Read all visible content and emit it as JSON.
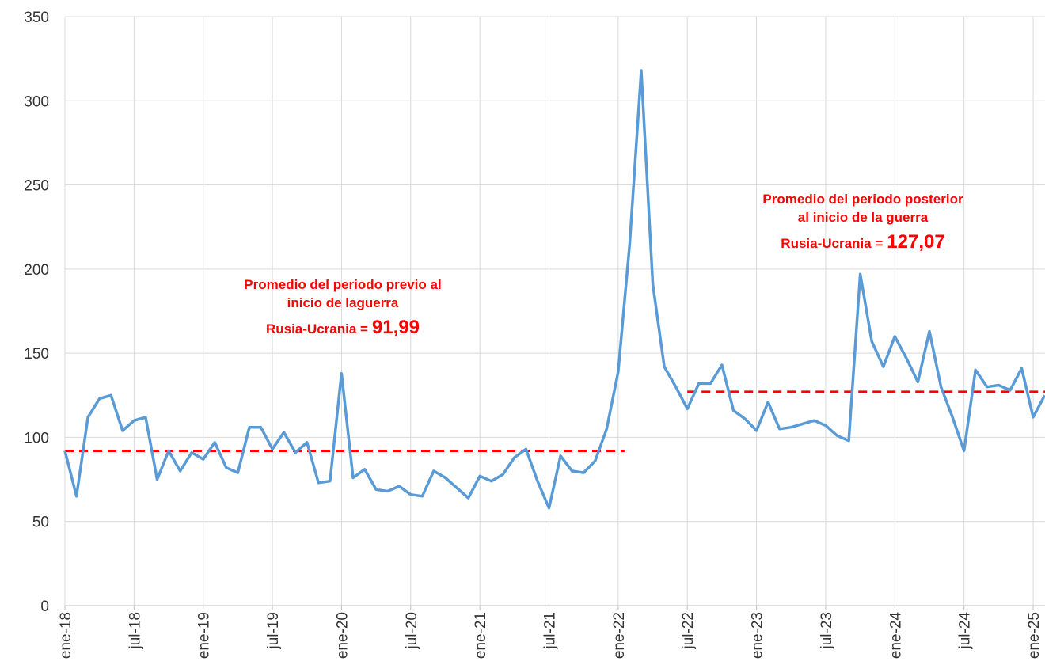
{
  "chart_data": {
    "type": "line",
    "categories": [
      "ene-18",
      null,
      null,
      null,
      null,
      null,
      "jul-18",
      null,
      null,
      null,
      null,
      null,
      "ene-19",
      null,
      null,
      null,
      null,
      null,
      "jul-19",
      null,
      null,
      null,
      null,
      null,
      "ene-20",
      null,
      null,
      null,
      null,
      null,
      "jul-20",
      null,
      null,
      null,
      null,
      null,
      "ene-21",
      null,
      null,
      null,
      null,
      null,
      "jul-21",
      null,
      null,
      null,
      null,
      null,
      "ene-22",
      null,
      null,
      null,
      null,
      null,
      "jul-22",
      null,
      null,
      null,
      null,
      null,
      "ene-23",
      null,
      null,
      null,
      null,
      null,
      "jul-23",
      null,
      null,
      null,
      null,
      null,
      "ene-24",
      null,
      null,
      null,
      null,
      null,
      "jul-24",
      null,
      null,
      null,
      null,
      null,
      "ene-25",
      null
    ],
    "series": [
      {
        "color": "#5b9bd5",
        "values": [
          92,
          65,
          112,
          123,
          125,
          104,
          110,
          112,
          75,
          92,
          80,
          91,
          87,
          97,
          82,
          79,
          106,
          106,
          93,
          103,
          91,
          97,
          73,
          74,
          138,
          76,
          81,
          69,
          68,
          71,
          66,
          65,
          80,
          76,
          70,
          64,
          77,
          74,
          78,
          88,
          93,
          74,
          58,
          89,
          80,
          79,
          86,
          105,
          139,
          215,
          318,
          191,
          142,
          130,
          117,
          132,
          132,
          143,
          116,
          111,
          104,
          121,
          105,
          106,
          108,
          110,
          107,
          101,
          98,
          197,
          157,
          142,
          160,
          147,
          133,
          163,
          130,
          112,
          92,
          140,
          130,
          131,
          128,
          141,
          112,
          125
        ]
      }
    ],
    "ylim": [
      0,
      350
    ],
    "yticks": [
      0,
      50,
      100,
      150,
      200,
      250,
      300,
      350
    ],
    "grid": true,
    "reference_lines": [
      {
        "value": 91.99,
        "value_label": "91,99",
        "color": "#ff0000",
        "from": "ene-18",
        "to": "ene-22",
        "text": [
          "Promedio del periodo previo al",
          "inicio de laguerra",
          "Rusia-Ucrania ="
        ]
      },
      {
        "value": 127.07,
        "value_label": "127,07",
        "color": "#ff0000",
        "from": "jul-22",
        "to": "ene-25",
        "text": [
          "Promedio del periodo posterior",
          "al inicio de la guerra",
          "Rusia-Ucrania ="
        ]
      }
    ]
  }
}
